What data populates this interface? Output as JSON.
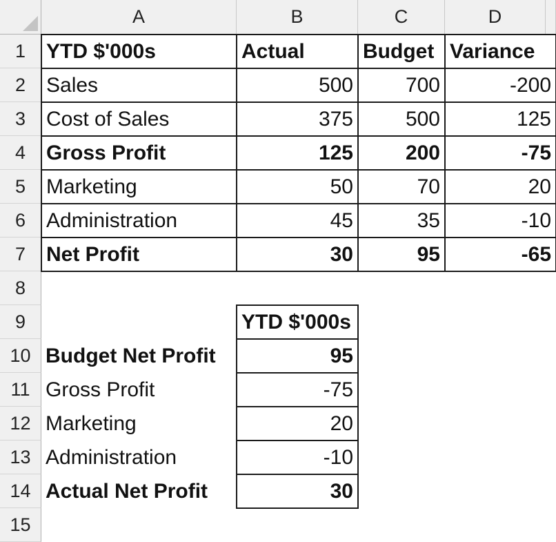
{
  "columns": [
    "A",
    "B",
    "C",
    "D"
  ],
  "rows": [
    "1",
    "2",
    "3",
    "4",
    "5",
    "6",
    "7",
    "8",
    "9",
    "10",
    "11",
    "12",
    "13",
    "14",
    "15"
  ],
  "table1": {
    "header": {
      "label": "YTD $'000s",
      "actual": "Actual",
      "budget": "Budget",
      "variance": "Variance"
    },
    "rows": [
      {
        "label": "Sales",
        "actual": "500",
        "budget": "700",
        "variance": "-200",
        "bold": false
      },
      {
        "label": "Cost of Sales",
        "actual": "375",
        "budget": "500",
        "variance": "125",
        "bold": false
      },
      {
        "label": "Gross Profit",
        "actual": "125",
        "budget": "200",
        "variance": "-75",
        "bold": true
      },
      {
        "label": "Marketing",
        "actual": "50",
        "budget": "70",
        "variance": "20",
        "bold": false
      },
      {
        "label": "Administration",
        "actual": "45",
        "budget": "35",
        "variance": "-10",
        "bold": false
      },
      {
        "label": "Net Profit",
        "actual": "30",
        "budget": "95",
        "variance": "-65",
        "bold": true
      }
    ]
  },
  "table2": {
    "header": "YTD $'000s",
    "rows": [
      {
        "label": "Budget Net Profit",
        "value": "95",
        "bold": true
      },
      {
        "label": "Gross Profit",
        "value": "-75",
        "bold": false
      },
      {
        "label": "Marketing",
        "value": "20",
        "bold": false
      },
      {
        "label": "Administration",
        "value": "-10",
        "bold": false
      },
      {
        "label": "Actual Net Profit",
        "value": "30",
        "bold": true
      }
    ]
  }
}
